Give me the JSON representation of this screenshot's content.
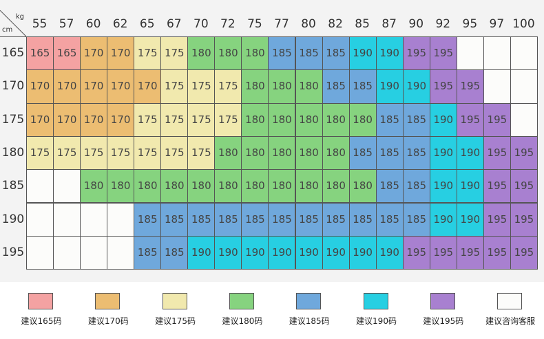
{
  "axis": {
    "weight_unit": "kg",
    "height_unit": "cm"
  },
  "weights": [
    "55",
    "57",
    "60",
    "62",
    "65",
    "67",
    "70",
    "72",
    "75",
    "77",
    "80",
    "82",
    "85",
    "87",
    "90",
    "92",
    "95",
    "97",
    "100"
  ],
  "heights": [
    "165",
    "170",
    "175",
    "180",
    "185",
    "190",
    "195"
  ],
  "grid": [
    [
      "165",
      "165",
      "170",
      "170",
      "175",
      "175",
      "180",
      "180",
      "180",
      "185",
      "185",
      "185",
      "190",
      "190",
      "195",
      "195",
      "",
      "",
      ""
    ],
    [
      "170",
      "170",
      "170",
      "170",
      "170",
      "175",
      "175",
      "175",
      "180",
      "180",
      "180",
      "185",
      "185",
      "190",
      "190",
      "195",
      "195",
      "",
      ""
    ],
    [
      "170",
      "170",
      "170",
      "170",
      "175",
      "175",
      "175",
      "175",
      "180",
      "180",
      "180",
      "180",
      "180",
      "185",
      "185",
      "190",
      "195",
      "195",
      ""
    ],
    [
      "175",
      "175",
      "175",
      "175",
      "175",
      "175",
      "175",
      "180",
      "180",
      "180",
      "180",
      "180",
      "185",
      "185",
      "185",
      "190",
      "190",
      "195",
      "195"
    ],
    [
      "",
      "",
      "180",
      "180",
      "180",
      "180",
      "180",
      "180",
      "180",
      "180",
      "180",
      "180",
      "180",
      "185",
      "185",
      "190",
      "190",
      "195",
      "195"
    ],
    [
      "",
      "",
      "",
      "",
      "185",
      "185",
      "185",
      "185",
      "185",
      "185",
      "185",
      "185",
      "185",
      "185",
      "185",
      "190",
      "190",
      "195",
      "195"
    ],
    [
      "",
      "",
      "",
      "",
      "185",
      "185",
      "190",
      "190",
      "190",
      "190",
      "190",
      "190",
      "190",
      "190",
      "195",
      "195",
      "195",
      "195",
      "195"
    ]
  ],
  "size_colors": {
    "165": "#f4a2a2",
    "170": "#ecbd72",
    "175": "#f1e9ae",
    "180": "#86d37f",
    "185": "#6fa8dc",
    "190": "#27cfe2",
    "195": "#a880d0",
    "": "#fcfcfa"
  },
  "legend": [
    {
      "key": "165",
      "label": "建议165码"
    },
    {
      "key": "170",
      "label": "建议170码"
    },
    {
      "key": "175",
      "label": "建议175码"
    },
    {
      "key": "180",
      "label": "建议180码"
    },
    {
      "key": "185",
      "label": "建议185码"
    },
    {
      "key": "190",
      "label": "建议190码"
    },
    {
      "key": "195",
      "label": "建议195码"
    },
    {
      "key": "",
      "label": "建议咨询客服"
    }
  ]
}
